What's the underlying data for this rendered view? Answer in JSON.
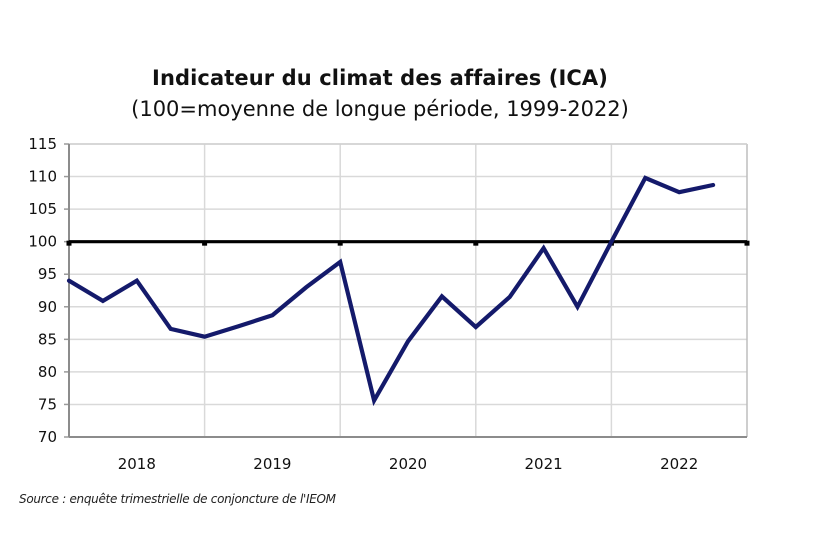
{
  "chart_data": {
    "type": "line",
    "title": "Indicateur du climat des affaires (ICA)",
    "subtitle": "(100=moyenne de longue période, 1999-2022)",
    "xlabel": "",
    "ylabel": "",
    "ylim": [
      70,
      115
    ],
    "yticks": [
      70,
      75,
      80,
      85,
      90,
      95,
      100,
      105,
      110,
      115
    ],
    "ytick_labels": [
      "70",
      "75",
      "80",
      "85",
      "90",
      "95",
      "100",
      "105",
      "110",
      "115"
    ],
    "categories": [
      "2018",
      "2019",
      "2020",
      "2021",
      "2022"
    ],
    "quarters_per_category": 4,
    "grid": true,
    "reference_line": {
      "value": 100,
      "color": "#000000"
    },
    "series": [
      {
        "name": "ICA",
        "color": "#141a6b",
        "values": [
          94.0,
          90.9,
          94.0,
          86.6,
          85.4,
          87.0,
          88.7,
          93.0,
          96.9,
          75.6,
          84.7,
          91.6,
          86.9,
          91.5,
          99.0,
          90.0,
          100.0,
          109.8,
          107.6,
          108.7
        ]
      }
    ],
    "source": "Source : enquête trimestrielle de conjoncture de l'IEOM"
  }
}
